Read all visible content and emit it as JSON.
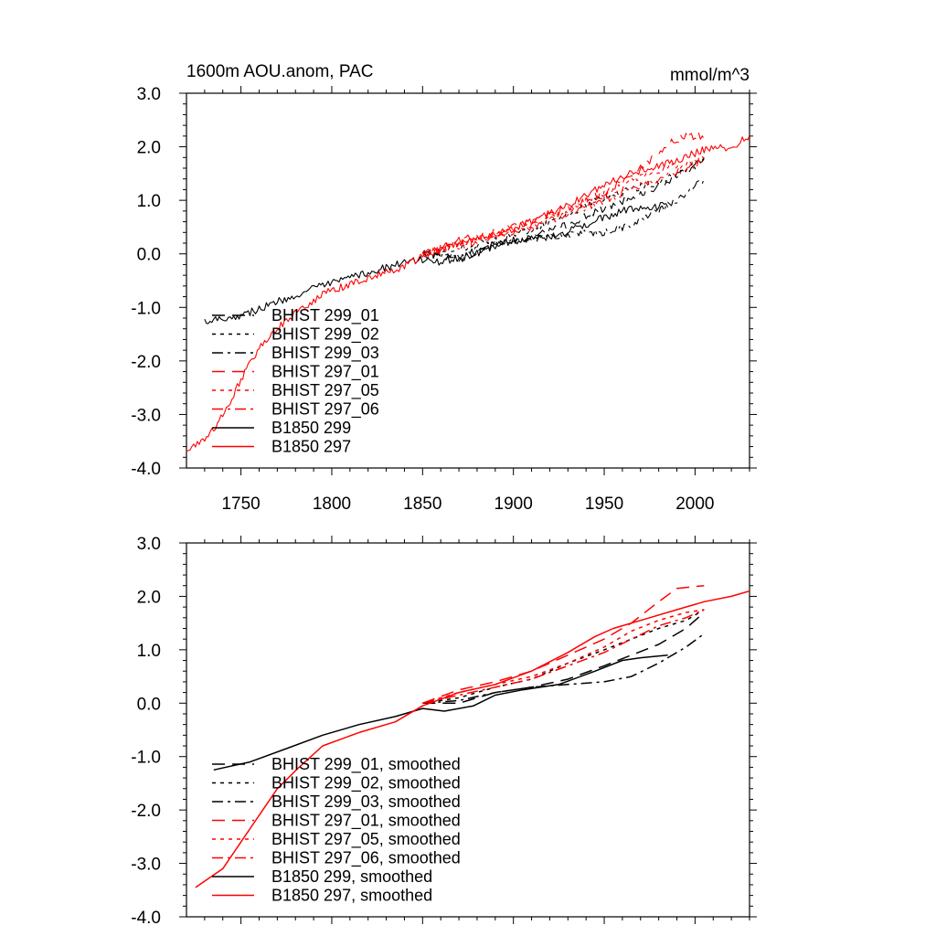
{
  "chart_data": [
    {
      "type": "line",
      "title": "1600m AOU.anom, PAC",
      "units": "mmol/m^3",
      "xlim": [
        1720,
        2030
      ],
      "ylim": [
        -4.0,
        3.0
      ],
      "xticks": [
        1750,
        1800,
        1850,
        1900,
        1950,
        2000
      ],
      "yticks": [
        "3.0",
        "2.0",
        "1.0",
        "0.0",
        "-1.0",
        "-2.0",
        "-3.0",
        "-4.0"
      ],
      "show_x_tick_labels": true,
      "grid": false,
      "legend_position": "lower-left",
      "series": [
        {
          "name": "BHIST 299_01",
          "color": "#000000",
          "dash": "long-dash",
          "noisy": true,
          "points": [
            [
              1850,
              0.0
            ],
            [
              1870,
              -0.1
            ],
            [
              1890,
              0.15
            ],
            [
              1910,
              0.3
            ],
            [
              1930,
              0.55
            ],
            [
              1950,
              0.85
            ],
            [
              1965,
              1.05
            ],
            [
              1980,
              1.25
            ],
            [
              1995,
              1.55
            ],
            [
              2005,
              1.8
            ]
          ]
        },
        {
          "name": "BHIST 299_02",
          "color": "#000000",
          "dash": "dot",
          "noisy": true,
          "points": [
            [
              1850,
              0.0
            ],
            [
              1870,
              0.1
            ],
            [
              1890,
              0.25
            ],
            [
              1910,
              0.45
            ],
            [
              1930,
              0.75
            ],
            [
              1950,
              1.05
            ],
            [
              1965,
              1.2
            ],
            [
              1980,
              1.35
            ],
            [
              1995,
              1.55
            ],
            [
              2005,
              1.75
            ]
          ]
        },
        {
          "name": "BHIST 299_03",
          "color": "#000000",
          "dash": "dash-dot",
          "noisy": true,
          "points": [
            [
              1850,
              0.0
            ],
            [
              1870,
              -0.05
            ],
            [
              1890,
              0.2
            ],
            [
              1910,
              0.3
            ],
            [
              1930,
              0.35
            ],
            [
              1950,
              0.4
            ],
            [
              1965,
              0.55
            ],
            [
              1980,
              0.8
            ],
            [
              1995,
              1.1
            ],
            [
              2005,
              1.4
            ]
          ]
        },
        {
          "name": "BHIST 297_01",
          "color": "#ff0000",
          "dash": "long-dash",
          "noisy": true,
          "points": [
            [
              1850,
              0.0
            ],
            [
              1870,
              0.25
            ],
            [
              1890,
              0.4
            ],
            [
              1910,
              0.6
            ],
            [
              1930,
              0.85
            ],
            [
              1950,
              1.15
            ],
            [
              1965,
              1.45
            ],
            [
              1975,
              1.75
            ],
            [
              1985,
              2.05
            ],
            [
              1995,
              2.2
            ],
            [
              2005,
              2.2
            ]
          ]
        },
        {
          "name": "BHIST 297_05",
          "color": "#ff0000",
          "dash": "dot",
          "noisy": true,
          "points": [
            [
              1850,
              0.0
            ],
            [
              1870,
              0.2
            ],
            [
              1890,
              0.35
            ],
            [
              1910,
              0.55
            ],
            [
              1930,
              0.8
            ],
            [
              1950,
              1.1
            ],
            [
              1965,
              1.35
            ],
            [
              1980,
              1.55
            ],
            [
              1995,
              1.7
            ],
            [
              2005,
              1.75
            ]
          ]
        },
        {
          "name": "BHIST 297_06",
          "color": "#ff0000",
          "dash": "dash-dot",
          "noisy": true,
          "points": [
            [
              1850,
              0.0
            ],
            [
              1870,
              0.15
            ],
            [
              1890,
              0.35
            ],
            [
              1910,
              0.5
            ],
            [
              1930,
              0.75
            ],
            [
              1950,
              1.0
            ],
            [
              1965,
              1.2
            ],
            [
              1980,
              1.4
            ],
            [
              1995,
              1.6
            ],
            [
              2005,
              1.75
            ]
          ]
        },
        {
          "name": "B1850 299",
          "color": "#000000",
          "dash": "solid",
          "noisy": true,
          "points": [
            [
              1730,
              -1.25
            ],
            [
              1750,
              -1.15
            ],
            [
              1770,
              -0.9
            ],
            [
              1790,
              -0.65
            ],
            [
              1810,
              -0.45
            ],
            [
              1830,
              -0.25
            ],
            [
              1850,
              -0.1
            ],
            [
              1860,
              -0.15
            ],
            [
              1880,
              0.0
            ],
            [
              1890,
              0.15
            ],
            [
              1900,
              0.25
            ],
            [
              1920,
              0.3
            ],
            [
              1940,
              0.55
            ],
            [
              1960,
              0.8
            ],
            [
              1970,
              0.85
            ],
            [
              1985,
              0.9
            ]
          ]
        },
        {
          "name": "B1850 297",
          "color": "#ff0000",
          "dash": "solid",
          "noisy": true,
          "points": [
            [
              1720,
              -3.7
            ],
            [
              1735,
              -3.3
            ],
            [
              1745,
              -2.7
            ],
            [
              1755,
              -2.0
            ],
            [
              1765,
              -1.55
            ],
            [
              1780,
              -1.1
            ],
            [
              1795,
              -0.75
            ],
            [
              1815,
              -0.5
            ],
            [
              1835,
              -0.3
            ],
            [
              1850,
              -0.05
            ],
            [
              1870,
              0.2
            ],
            [
              1890,
              0.35
            ],
            [
              1910,
              0.6
            ],
            [
              1930,
              0.9
            ],
            [
              1945,
              1.2
            ],
            [
              1955,
              1.4
            ],
            [
              1975,
              1.6
            ],
            [
              1990,
              1.75
            ],
            [
              2005,
              1.95
            ],
            [
              2020,
              2.0
            ],
            [
              2030,
              2.2
            ]
          ]
        }
      ]
    },
    {
      "type": "line",
      "xlim": [
        1720,
        2030
      ],
      "ylim": [
        -4.0,
        3.0
      ],
      "xticks": [
        1750,
        1800,
        1850,
        1900,
        1950,
        2000
      ],
      "yticks": [
        "3.0",
        "2.0",
        "1.0",
        "0.0",
        "-1.0",
        "-2.0",
        "-3.0",
        "-4.0"
      ],
      "show_x_tick_labels": false,
      "grid": false,
      "legend_position": "lower-left",
      "series": [
        {
          "name": "BHIST 299_01, smoothed",
          "color": "#000000",
          "dash": "long-dash",
          "noisy": false,
          "points": [
            [
              1850,
              0.0
            ],
            [
              1870,
              0.0
            ],
            [
              1890,
              0.2
            ],
            [
              1910,
              0.3
            ],
            [
              1930,
              0.45
            ],
            [
              1950,
              0.7
            ],
            [
              1965,
              0.9
            ],
            [
              1980,
              1.1
            ],
            [
              1995,
              1.4
            ],
            [
              2005,
              1.7
            ]
          ]
        },
        {
          "name": "BHIST 299_02, smoothed",
          "color": "#000000",
          "dash": "dot",
          "noisy": false,
          "points": [
            [
              1850,
              0.0
            ],
            [
              1870,
              0.1
            ],
            [
              1890,
              0.3
            ],
            [
              1910,
              0.45
            ],
            [
              1930,
              0.75
            ],
            [
              1950,
              1.0
            ],
            [
              1965,
              1.2
            ],
            [
              1980,
              1.4
            ],
            [
              1995,
              1.55
            ],
            [
              2005,
              1.75
            ]
          ]
        },
        {
          "name": "BHIST 299_03, smoothed",
          "color": "#000000",
          "dash": "dash-dot",
          "noisy": false,
          "points": [
            [
              1850,
              0.0
            ],
            [
              1870,
              0.05
            ],
            [
              1890,
              0.2
            ],
            [
              1910,
              0.3
            ],
            [
              1930,
              0.35
            ],
            [
              1950,
              0.4
            ],
            [
              1965,
              0.5
            ],
            [
              1980,
              0.75
            ],
            [
              1995,
              1.05
            ],
            [
              2005,
              1.3
            ]
          ]
        },
        {
          "name": "BHIST 297_01, smoothed",
          "color": "#ff0000",
          "dash": "long-dash",
          "noisy": false,
          "points": [
            [
              1850,
              0.0
            ],
            [
              1870,
              0.25
            ],
            [
              1890,
              0.4
            ],
            [
              1910,
              0.6
            ],
            [
              1930,
              0.9
            ],
            [
              1950,
              1.2
            ],
            [
              1965,
              1.5
            ],
            [
              1980,
              1.9
            ],
            [
              1990,
              2.15
            ],
            [
              2005,
              2.2
            ]
          ]
        },
        {
          "name": "BHIST 297_05, smoothed",
          "color": "#ff0000",
          "dash": "dot",
          "noisy": false,
          "points": [
            [
              1850,
              0.0
            ],
            [
              1870,
              0.2
            ],
            [
              1890,
              0.35
            ],
            [
              1910,
              0.5
            ],
            [
              1930,
              0.75
            ],
            [
              1950,
              1.05
            ],
            [
              1965,
              1.35
            ],
            [
              1980,
              1.55
            ],
            [
              1995,
              1.7
            ],
            [
              2005,
              1.75
            ]
          ]
        },
        {
          "name": "BHIST 297_06, smoothed",
          "color": "#ff0000",
          "dash": "dash-dot",
          "noisy": false,
          "points": [
            [
              1850,
              0.0
            ],
            [
              1870,
              0.15
            ],
            [
              1890,
              0.3
            ],
            [
              1910,
              0.45
            ],
            [
              1930,
              0.7
            ],
            [
              1950,
              0.95
            ],
            [
              1965,
              1.2
            ],
            [
              1980,
              1.45
            ],
            [
              1995,
              1.6
            ],
            [
              2005,
              1.75
            ]
          ]
        },
        {
          "name": "B1850 299, smoothed",
          "color": "#000000",
          "dash": "solid",
          "noisy": false,
          "points": [
            [
              1735,
              -1.25
            ],
            [
              1755,
              -1.1
            ],
            [
              1775,
              -0.85
            ],
            [
              1795,
              -0.6
            ],
            [
              1815,
              -0.4
            ],
            [
              1835,
              -0.25
            ],
            [
              1850,
              -0.1
            ],
            [
              1862,
              -0.15
            ],
            [
              1878,
              -0.05
            ],
            [
              1890,
              0.15
            ],
            [
              1905,
              0.25
            ],
            [
              1925,
              0.35
            ],
            [
              1945,
              0.6
            ],
            [
              1960,
              0.8
            ],
            [
              1970,
              0.85
            ],
            [
              1985,
              0.9
            ]
          ]
        },
        {
          "name": "B1850 297, smoothed",
          "color": "#ff0000",
          "dash": "solid",
          "noisy": false,
          "points": [
            [
              1725,
              -3.45
            ],
            [
              1740,
              -3.1
            ],
            [
              1750,
              -2.6
            ],
            [
              1760,
              -2.1
            ],
            [
              1770,
              -1.6
            ],
            [
              1782,
              -1.2
            ],
            [
              1795,
              -0.8
            ],
            [
              1815,
              -0.55
            ],
            [
              1835,
              -0.35
            ],
            [
              1850,
              -0.05
            ],
            [
              1870,
              0.2
            ],
            [
              1890,
              0.35
            ],
            [
              1910,
              0.6
            ],
            [
              1930,
              0.95
            ],
            [
              1945,
              1.25
            ],
            [
              1955,
              1.4
            ],
            [
              1975,
              1.6
            ],
            [
              1990,
              1.75
            ],
            [
              2005,
              1.9
            ],
            [
              2020,
              2.0
            ],
            [
              2030,
              2.1
            ]
          ]
        }
      ]
    }
  ]
}
